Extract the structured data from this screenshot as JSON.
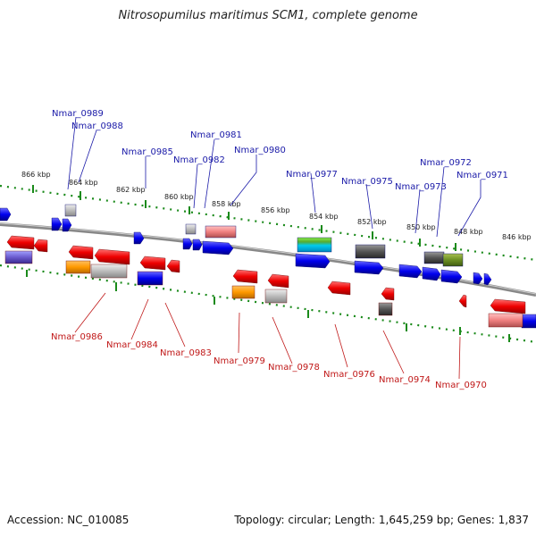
{
  "title": "Nitrosopumilus maritimus SCM1, complete genome",
  "footer": {
    "accession": "Accession: NC_010085",
    "topology": "Topology: circular; Length: 1,645,259 bp; Genes: 1,837"
  },
  "scale": [
    "866 kbp",
    "864 kbp",
    "862 kbp",
    "860 kbp",
    "858 kbp",
    "856 kbp",
    "854 kbp",
    "852 kbp",
    "850 kbp",
    "848 kbp",
    "846 kbp"
  ],
  "genes_top": [
    "Nmar_0989",
    "Nmar_0988",
    "Nmar_0985",
    "Nmar_0982",
    "Nmar_0981",
    "Nmar_0980",
    "Nmar_0977",
    "Nmar_0975",
    "Nmar_0973",
    "Nmar_0972",
    "Nmar_0971"
  ],
  "genes_bottom": [
    "Nmar_0986",
    "Nmar_0984",
    "Nmar_0983",
    "Nmar_0979",
    "Nmar_0978",
    "Nmar_0976",
    "Nmar_0974",
    "Nmar_0970"
  ],
  "colors": {
    "forward": "#0000ee",
    "reverse": "#ee0000",
    "axis": "#888888",
    "dots": "#1a8a1a",
    "label_top": "#1a1aa8",
    "label_bottom": "#c01818"
  }
}
